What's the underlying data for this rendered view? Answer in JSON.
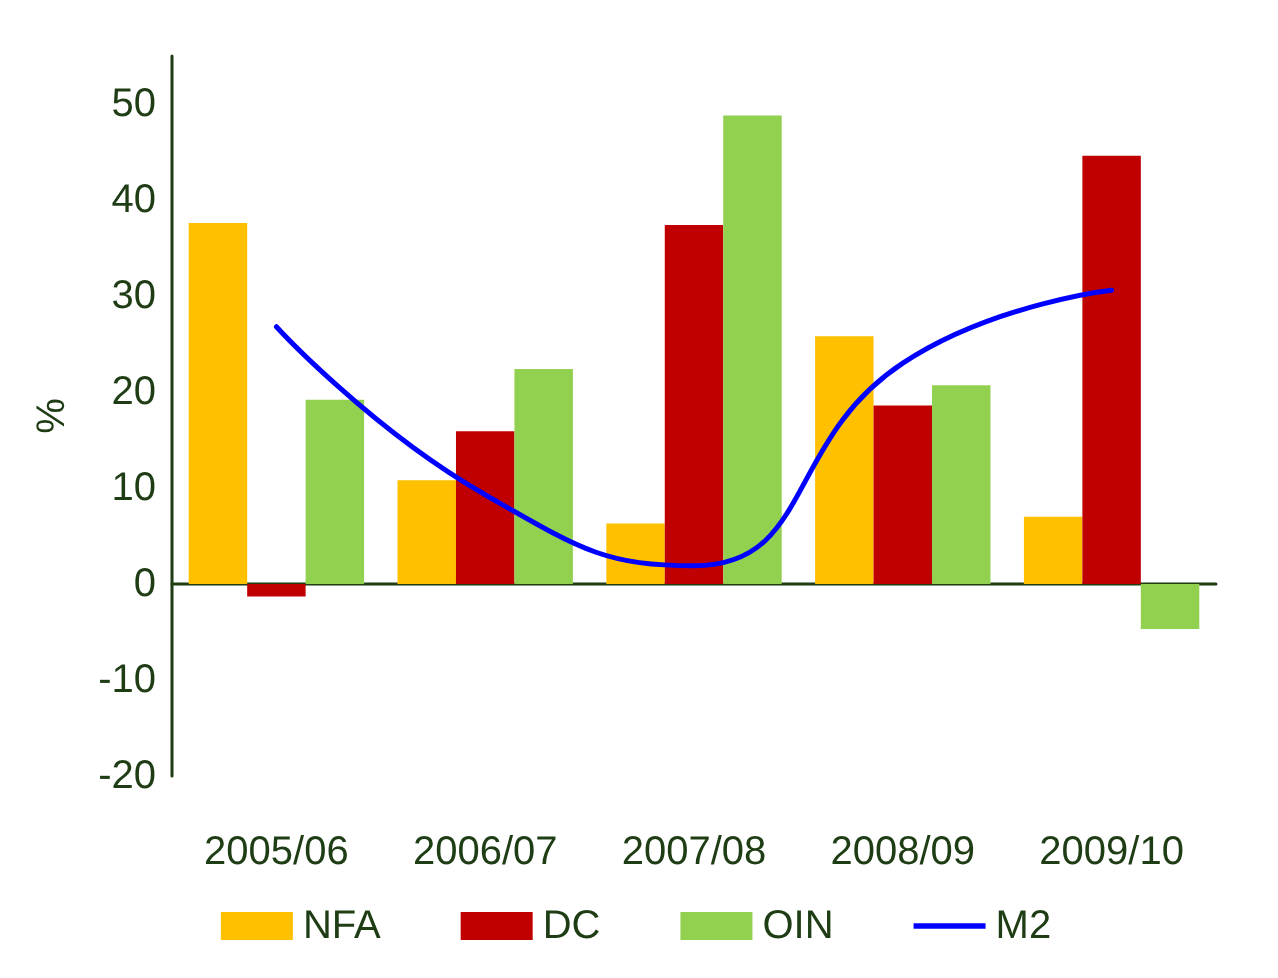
{
  "chart_data": {
    "type": "bar",
    "ylabel": "%",
    "categories": [
      "2005/06",
      "2006/07",
      "2007/08",
      "2008/09",
      "2009/10"
    ],
    "series": [
      {
        "name": "NFA",
        "color": "#ffc000",
        "values": [
          37.6,
          10.8,
          6.3,
          25.8,
          7.0
        ]
      },
      {
        "name": "DC",
        "color": "#c00000",
        "values": [
          -1.3,
          15.9,
          37.4,
          18.6,
          44.6
        ]
      },
      {
        "name": "OIN",
        "color": "#92d050",
        "values": [
          19.2,
          22.4,
          48.8,
          20.7,
          -4.7
        ]
      },
      {
        "name": "M2",
        "color": "#0000ff",
        "type": "line",
        "values": [
          26.8,
          9.3,
          1.9,
          23.0,
          30.6
        ]
      }
    ],
    "ylim": [
      -20,
      55
    ],
    "yticks": [
      -20,
      -10,
      0,
      10,
      20,
      30,
      40,
      50
    ],
    "grid": false,
    "legend": "bottom",
    "marker": "none",
    "line_style": "solid"
  }
}
